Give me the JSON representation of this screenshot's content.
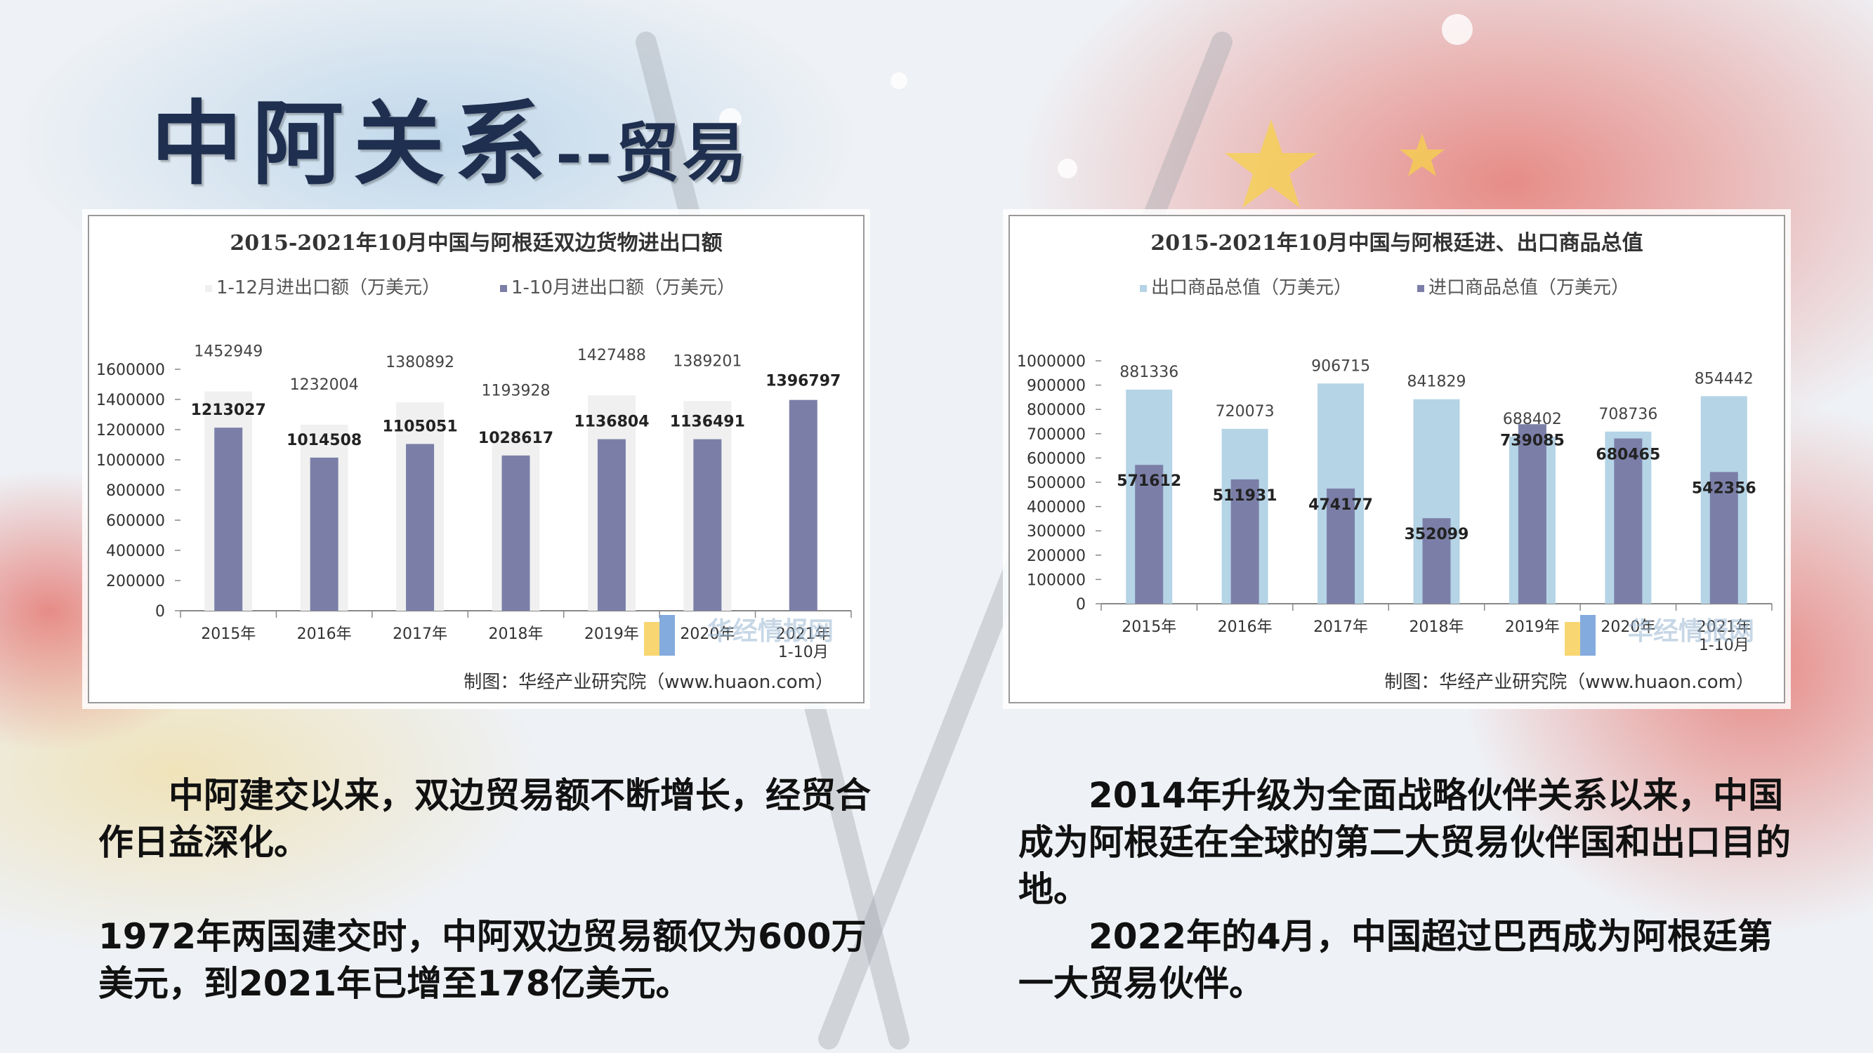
{
  "slide": {
    "title_main": "中阿关系",
    "title_sub": "--贸易"
  },
  "left_paragraphs": [
    "　　中阿建交以来，双边贸易额不断增长，经贸合作日益深化。",
    "1972年两国建交时，中阿双边贸易额仅为600万美元，到2021年已增至178亿美元。"
  ],
  "right_paragraphs": [
    "　　2014年升级为全面战略伙伴关系以来，中国成为阿根廷在全球的第二大贸易伙伴国和出口目的地。",
    "　　2022年的4月，中国超过巴西成为阿根廷第一大贸易伙伴。"
  ],
  "colors": {
    "bar_dark": "#7b7fa8",
    "bar_light_chart1": "#f0f0f0",
    "bar_light_chart2": "#b5d4e6",
    "title_color": "#1f2f4f"
  },
  "chart_data": [
    {
      "type": "bar",
      "title": "2015-2021年10月中国与阿根廷双边货物进出口额",
      "categories": [
        "2015年",
        "2016年",
        "2017年",
        "2018年",
        "2019年",
        "2020年",
        "2021年\n1-10月"
      ],
      "series": [
        {
          "name": "1-12月进出口额（万美元）",
          "values": [
            1452949,
            1232004,
            1380892,
            1193928,
            1427488,
            1389201,
            null
          ]
        },
        {
          "name": "1-10月进出口额（万美元）",
          "values": [
            1213027,
            1014508,
            1105051,
            1028617,
            1136804,
            1136491,
            1396797
          ]
        }
      ],
      "ylim": [
        0,
        1600000
      ],
      "yticks": [
        0,
        200000,
        400000,
        600000,
        800000,
        1000000,
        1200000,
        1400000,
        1600000
      ],
      "legend": "top",
      "source": "制图：华经产业研究院（www.huaon.com）",
      "watermark": "华经情报网"
    },
    {
      "type": "bar",
      "title": "2015-2021年10月中国与阿根廷进、出口商品总值",
      "categories": [
        "2015年",
        "2016年",
        "2017年",
        "2018年",
        "2019年",
        "2020年",
        "2021年\n1-10月"
      ],
      "series": [
        {
          "name": "出口商品总值（万美元）",
          "values": [
            881336,
            720073,
            906715,
            841829,
            688402,
            708736,
            854442
          ]
        },
        {
          "name": "进口商品总值（万美元）",
          "values": [
            571612,
            511931,
            474177,
            352099,
            739085,
            680465,
            542356
          ]
        }
      ],
      "ylim": [
        0,
        1000000
      ],
      "yticks": [
        0,
        100000,
        200000,
        300000,
        400000,
        500000,
        600000,
        700000,
        800000,
        900000,
        1000000
      ],
      "legend": "top",
      "source": "制图：华经产业研究院（www.huaon.com）",
      "watermark": "华经情报网"
    }
  ]
}
